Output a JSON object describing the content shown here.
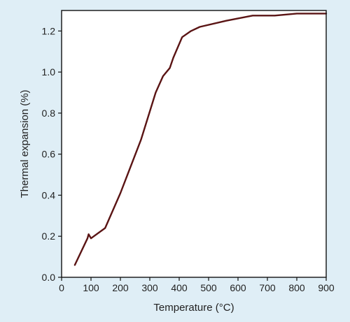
{
  "colors": {
    "background": "#dfeef6",
    "plot_area": "#ffffff",
    "axis": "#111111",
    "series_line": "#5a1414"
  },
  "chart_data": {
    "type": "line",
    "title": "",
    "xlabel": "Temperature (°C)",
    "ylabel": "Thermal expansion (%)",
    "xlim": [
      0,
      900
    ],
    "ylim": [
      0,
      1.3
    ],
    "xticks": [
      0,
      100,
      200,
      300,
      400,
      500,
      600,
      700,
      800,
      900
    ],
    "yticks": [
      0.0,
      0.2,
      0.4,
      0.6,
      0.8,
      1.0,
      1.2
    ],
    "xtick_labels": [
      "0",
      "100",
      "200",
      "300",
      "400",
      "500",
      "600",
      "700",
      "800",
      "900"
    ],
    "ytick_labels": [
      "0.0",
      "0.2",
      "0.4",
      "0.6",
      "0.8",
      "1.0",
      "1.2"
    ],
    "grid": false,
    "legend": "none",
    "series": [
      {
        "points": [
          [
            45,
            0.06
          ],
          [
            88,
            0.19
          ],
          [
            92,
            0.21
          ],
          [
            100,
            0.19
          ],
          [
            148,
            0.24
          ],
          [
            200,
            0.41
          ],
          [
            270,
            0.67
          ],
          [
            320,
            0.9
          ],
          [
            345,
            0.98
          ],
          [
            368,
            1.02
          ],
          [
            380,
            1.07
          ],
          [
            410,
            1.17
          ],
          [
            440,
            1.2
          ],
          [
            470,
            1.22
          ],
          [
            560,
            1.25
          ],
          [
            650,
            1.275
          ],
          [
            725,
            1.275
          ],
          [
            800,
            1.285
          ],
          [
            900,
            1.285
          ]
        ]
      }
    ]
  }
}
